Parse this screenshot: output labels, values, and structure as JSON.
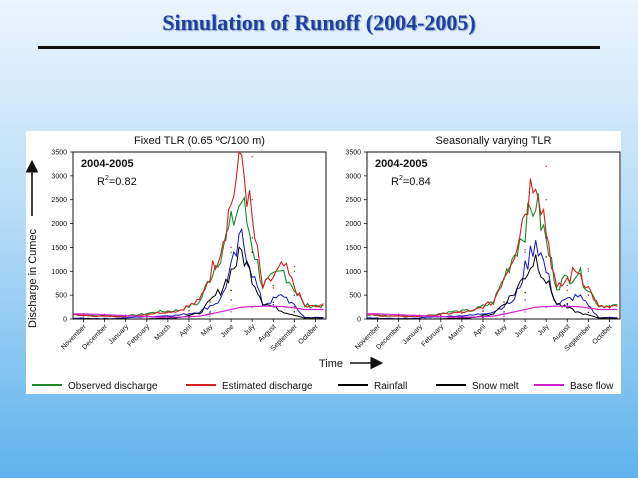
{
  "slide": {
    "title": "Simulation of Runoff (2004-2005)"
  },
  "figure": {
    "y_axis_label": "Discharge in Cumec",
    "x_axis_label": "Time",
    "legend": [
      {
        "label": "Observed discharge",
        "color": "#1a8a2a"
      },
      {
        "label": "Estimated discharge",
        "color": "#d42020"
      },
      {
        "label": "Rainfall",
        "color": "#000000"
      },
      {
        "label": "Snow melt",
        "color": "#000000"
      },
      {
        "label": "Base flow",
        "color": "#d020d0"
      }
    ],
    "colors": {
      "observed": "#1a8a2a",
      "estimated": "#d42020",
      "rainfall": "#1515c0",
      "snowmelt": "#000000",
      "baseflow": "#d020d0"
    }
  },
  "chart_data": [
    {
      "type": "line",
      "title": "Fixed TLR (0.65 ºC/100 m)",
      "period_label": "2004-2005",
      "r2_label": "R",
      "r2_sup": "2",
      "r2_value": "=0.82",
      "ylabel": "Discharge in Cumec",
      "xlabel": "Time",
      "ylim": [
        0,
        3500
      ],
      "yticks": [
        0,
        500,
        1000,
        1500,
        2000,
        2500,
        3000,
        3500
      ],
      "categories": [
        "November",
        "December",
        "January",
        "February",
        "March",
        "April",
        "May",
        "June",
        "July",
        "August",
        "September",
        "October"
      ],
      "series": [
        {
          "name": "Observed discharge",
          "values": [
            90,
            70,
            60,
            80,
            150,
            180,
            350,
            1400,
            2500,
            700,
            1000,
            280
          ]
        },
        {
          "name": "Estimated discharge",
          "values": [
            90,
            60,
            50,
            70,
            130,
            170,
            380,
            1500,
            3400,
            650,
            1100,
            260
          ]
        },
        {
          "name": "Rainfall",
          "values": [
            20,
            10,
            10,
            40,
            60,
            80,
            150,
            400,
            1700,
            300,
            500,
            30
          ]
        },
        {
          "name": "Snow melt",
          "values": [
            5,
            0,
            0,
            0,
            10,
            30,
            120,
            600,
            1400,
            350,
            150,
            20
          ]
        },
        {
          "name": "Base flow",
          "values": [
            110,
            100,
            80,
            60,
            40,
            40,
            60,
            150,
            250,
            270,
            260,
            200
          ]
        }
      ]
    },
    {
      "type": "line",
      "title": "Seasonally varying TLR",
      "period_label": "2004-2005",
      "r2_label": "R",
      "r2_sup": "2",
      "r2_value": "=0.84",
      "ylim": [
        0,
        3500
      ],
      "yticks": [
        0,
        500,
        1000,
        1500,
        2000,
        2500,
        3000,
        3500
      ],
      "categories": [
        "November",
        "December",
        "January",
        "February",
        "March",
        "April",
        "May",
        "June",
        "July",
        "August",
        "September",
        "October"
      ],
      "series": [
        {
          "name": "Observed discharge",
          "values": [
            90,
            70,
            60,
            80,
            150,
            180,
            350,
            1400,
            2500,
            700,
            1000,
            280
          ]
        },
        {
          "name": "Estimated discharge",
          "values": [
            90,
            60,
            50,
            70,
            120,
            160,
            360,
            1450,
            3200,
            600,
            1050,
            250
          ]
        },
        {
          "name": "Rainfall",
          "values": [
            20,
            10,
            10,
            40,
            60,
            80,
            150,
            400,
            1700,
            300,
            500,
            30
          ]
        },
        {
          "name": "Snow melt",
          "values": [
            5,
            0,
            0,
            0,
            10,
            30,
            110,
            550,
            1300,
            320,
            140,
            20
          ]
        },
        {
          "name": "Base flow",
          "values": [
            110,
            100,
            80,
            60,
            40,
            40,
            60,
            150,
            250,
            270,
            260,
            200
          ]
        }
      ]
    }
  ]
}
